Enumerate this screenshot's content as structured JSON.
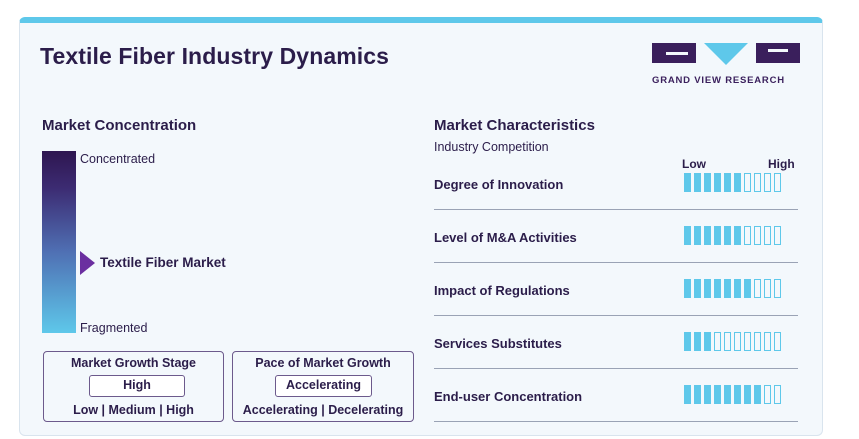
{
  "title": "Textile Fiber Industry Dynamics",
  "logo": {
    "text": "GRAND VIEW RESEARCH"
  },
  "concentration": {
    "heading": "Market Concentration",
    "top_label": "Concentrated",
    "bottom_label": "Fragmented",
    "market_label": "Textile Fiber Market"
  },
  "growth_stage": {
    "title": "Market Growth Stage",
    "value": "High",
    "options": "Low | Medium | High"
  },
  "growth_pace": {
    "title": "Pace of Market Growth",
    "value": "Accelerating",
    "options": "Accelerating | Decelerating"
  },
  "characteristics": {
    "heading": "Market Characteristics",
    "subheading": "Industry Competition",
    "low_label": "Low",
    "high_label": "High",
    "max_level": 10,
    "rows": [
      {
        "label": "Degree of Innovation",
        "level": 6
      },
      {
        "label": "Level of M&A Activities",
        "level": 6
      },
      {
        "label": "Impact of Regulations",
        "level": 7
      },
      {
        "label": "Services Substitutes",
        "level": 3
      },
      {
        "label": "End-user Concentration",
        "level": 8
      }
    ]
  },
  "colors": {
    "accent": "#5ec8ea",
    "brand_dark": "#3a1f5c",
    "marker": "#6b2fa0"
  }
}
